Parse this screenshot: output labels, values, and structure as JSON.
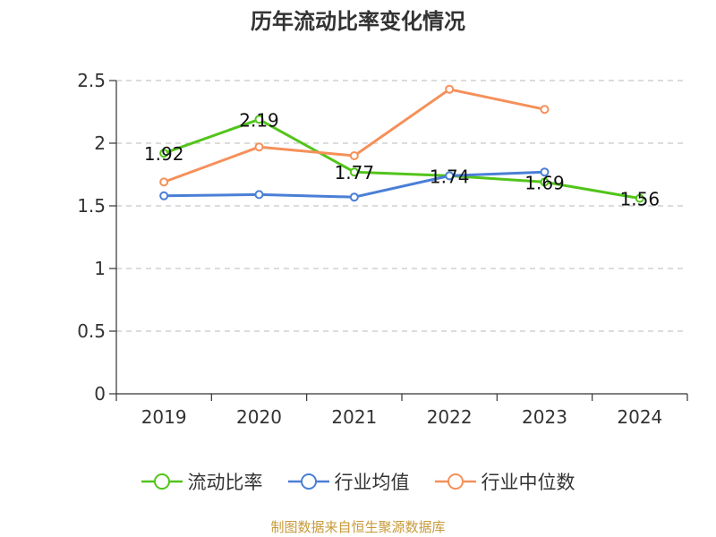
{
  "chart_data": {
    "type": "line",
    "title": "历年流动比率变化情况",
    "xlabel": "",
    "ylabel": "",
    "categories": [
      "2019",
      "2020",
      "2021",
      "2022",
      "2023",
      "2024"
    ],
    "ylim": [
      0,
      2.5
    ],
    "yticks": [
      "0",
      "0.5",
      "1",
      "1.5",
      "2",
      "2.5"
    ],
    "grid": true,
    "legend_position": "bottom",
    "series": [
      {
        "name": "流动比率",
        "color": "#52c41a",
        "values": [
          1.92,
          2.19,
          1.77,
          1.74,
          1.69,
          1.56
        ],
        "labels": [
          "1.92",
          "2.19",
          "1.77",
          "1.74",
          "1.69",
          "1.56"
        ]
      },
      {
        "name": "行业均值",
        "color": "#4a7fd6",
        "values": [
          1.58,
          1.59,
          1.57,
          1.74,
          1.77,
          null
        ],
        "labels": []
      },
      {
        "name": "行业中位数",
        "color": "#f5905a",
        "values": [
          1.69,
          1.97,
          1.9,
          2.43,
          2.27,
          null
        ],
        "labels": []
      }
    ]
  },
  "footer": {
    "source": "制图数据来自恒生聚源数据库"
  }
}
